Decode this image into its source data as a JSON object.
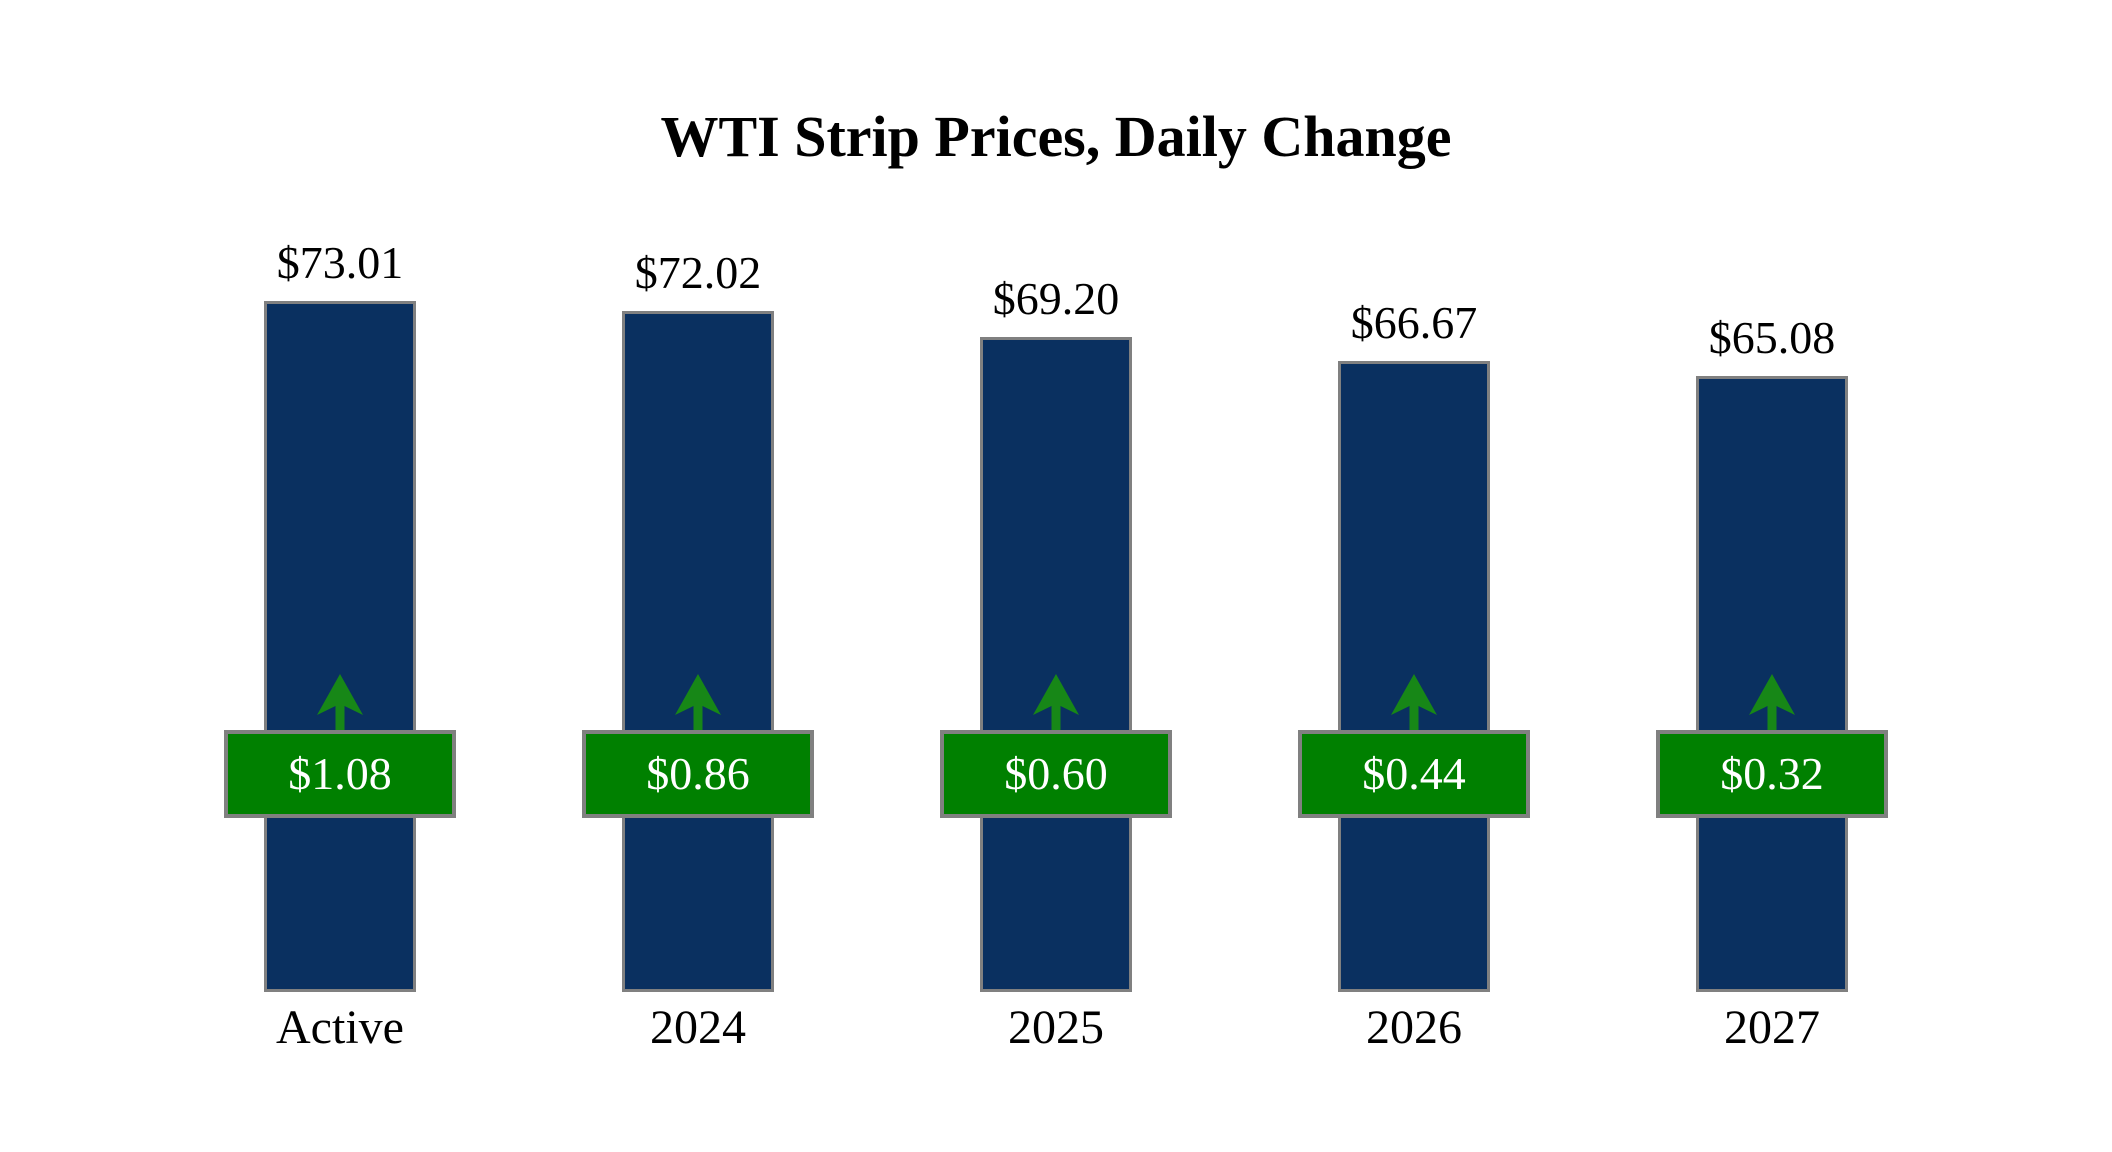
{
  "title": "WTI Strip Prices, Daily Change",
  "chart_data": {
    "type": "bar",
    "title": "WTI Strip Prices, Daily Change",
    "categories": [
      "Active",
      "2024",
      "2025",
      "2026",
      "2027"
    ],
    "series": [
      {
        "name": "price",
        "values": [
          73.01,
          72.02,
          69.2,
          66.67,
          65.08
        ],
        "labels": [
          "$73.01",
          "$72.02",
          "$69.20",
          "$66.67",
          "$65.08"
        ]
      },
      {
        "name": "daily_change",
        "values": [
          1.08,
          0.86,
          0.6,
          0.44,
          0.32
        ],
        "labels": [
          "$1.08",
          "$0.86",
          "$0.60",
          "$0.44",
          "$0.32"
        ],
        "direction": "up"
      }
    ],
    "xlabel": "",
    "ylabel": "",
    "ylim": [
      0,
      73.01
    ],
    "axes_hidden": true,
    "grid": false,
    "legend_position": "none"
  },
  "icons": {
    "change_arrow": "up-arrow-icon"
  },
  "colors": {
    "bar_fill": "#0a3060",
    "bar_border": "#808080",
    "badge_fill": "#008000",
    "badge_border": "#808080",
    "badge_text": "#ffffff",
    "arrow_fill": "#178717",
    "title_text": "#000000",
    "background": "#ffffff"
  }
}
